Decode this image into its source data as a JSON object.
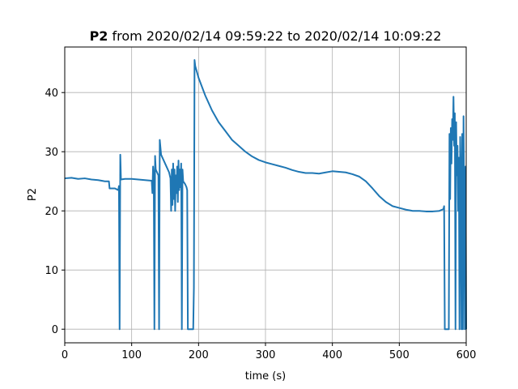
{
  "chart_data": {
    "type": "line",
    "title_bold": "P2",
    "title_rest": " from 2020/02/14 09:59:22 to 2020/02/14 10:09:22",
    "xlabel": "time (s)",
    "ylabel": "P2",
    "xlim": [
      0,
      600
    ],
    "ylim": [
      -2.3,
      47.7
    ],
    "xticks": [
      0,
      100,
      200,
      300,
      400,
      500,
      600
    ],
    "yticks": [
      0,
      10,
      20,
      30,
      40
    ],
    "grid": true,
    "series": [
      {
        "color": "#1f77b4",
        "points": [
          [
            0,
            25.5
          ],
          [
            10,
            25.6
          ],
          [
            20,
            25.4
          ],
          [
            30,
            25.5
          ],
          [
            40,
            25.3
          ],
          [
            50,
            25.2
          ],
          [
            60,
            25.0
          ],
          [
            66,
            25.0
          ],
          [
            67,
            23.8
          ],
          [
            75,
            23.8
          ],
          [
            80,
            23.5
          ],
          [
            81,
            24.2
          ],
          [
            82,
            0
          ],
          [
            83,
            29.5
          ],
          [
            84,
            25.3
          ],
          [
            90,
            25.4
          ],
          [
            100,
            25.4
          ],
          [
            110,
            25.3
          ],
          [
            120,
            25.2
          ],
          [
            130,
            25.1
          ],
          [
            131,
            23.0
          ],
          [
            132,
            27.5
          ],
          [
            133,
            26.0
          ],
          [
            134,
            0
          ],
          [
            135,
            29.3
          ],
          [
            136,
            27.0
          ],
          [
            138,
            26.5
          ],
          [
            140,
            26.0
          ],
          [
            141,
            0
          ],
          [
            142,
            32.0
          ],
          [
            144,
            29.5
          ],
          [
            148,
            28.5
          ],
          [
            152,
            27.5
          ],
          [
            156,
            26.5
          ],
          [
            158,
            25.5
          ],
          [
            159,
            20.0
          ],
          [
            160,
            27.0
          ],
          [
            161,
            21.0
          ],
          [
            162,
            28.0
          ],
          [
            163,
            22.0
          ],
          [
            164,
            27.0
          ],
          [
            165,
            20.0
          ],
          [
            166,
            26.0
          ],
          [
            167,
            23.0
          ],
          [
            168,
            27.5
          ],
          [
            169,
            21.5
          ],
          [
            170,
            28.5
          ],
          [
            171,
            23.5
          ],
          [
            172,
            27.0
          ],
          [
            173,
            24.0
          ],
          [
            174,
            28.0
          ],
          [
            175,
            0
          ],
          [
            176,
            27.0
          ],
          [
            177,
            25.0
          ],
          [
            180,
            24.5
          ],
          [
            182,
            24.0
          ],
          [
            183,
            23.5
          ],
          [
            184,
            0
          ],
          [
            190,
            0
          ],
          [
            192,
            0
          ],
          [
            193,
            7.0
          ],
          [
            194,
            45.5
          ],
          [
            195,
            44.5
          ],
          [
            200,
            42.5
          ],
          [
            210,
            39.5
          ],
          [
            220,
            37.0
          ],
          [
            230,
            35.0
          ],
          [
            240,
            33.5
          ],
          [
            250,
            32.0
          ],
          [
            260,
            31.0
          ],
          [
            270,
            30.0
          ],
          [
            280,
            29.2
          ],
          [
            290,
            28.6
          ],
          [
            300,
            28.2
          ],
          [
            310,
            27.9
          ],
          [
            320,
            27.6
          ],
          [
            330,
            27.3
          ],
          [
            340,
            26.9
          ],
          [
            350,
            26.6
          ],
          [
            360,
            26.4
          ],
          [
            370,
            26.4
          ],
          [
            380,
            26.3
          ],
          [
            390,
            26.5
          ],
          [
            400,
            26.7
          ],
          [
            410,
            26.6
          ],
          [
            420,
            26.5
          ],
          [
            430,
            26.2
          ],
          [
            440,
            25.8
          ],
          [
            450,
            25.0
          ],
          [
            460,
            23.8
          ],
          [
            470,
            22.5
          ],
          [
            480,
            21.5
          ],
          [
            490,
            20.8
          ],
          [
            500,
            20.5
          ],
          [
            510,
            20.2
          ],
          [
            520,
            20.0
          ],
          [
            530,
            20.0
          ],
          [
            540,
            19.9
          ],
          [
            550,
            19.9
          ],
          [
            560,
            20.0
          ],
          [
            566,
            20.3
          ],
          [
            567,
            20.8
          ],
          [
            568,
            0
          ],
          [
            574,
            0
          ],
          [
            575,
            33.0
          ],
          [
            576,
            22.0
          ],
          [
            577,
            34.0
          ],
          [
            578,
            28.0
          ],
          [
            579,
            35.5
          ],
          [
            580,
            32.0
          ],
          [
            581,
            39.3
          ],
          [
            582,
            31.0
          ],
          [
            583,
            36.5
          ],
          [
            584,
            0
          ],
          [
            585,
            35.0
          ],
          [
            586,
            26.0
          ],
          [
            587,
            31.0
          ],
          [
            588,
            20.0
          ],
          [
            589,
            29.0
          ],
          [
            590,
            0
          ],
          [
            591,
            32.5
          ],
          [
            592,
            25.0
          ],
          [
            593,
            0
          ],
          [
            594,
            33.0
          ],
          [
            595,
            0
          ],
          [
            596,
            36.0
          ],
          [
            597,
            20.0
          ],
          [
            598,
            0
          ],
          [
            599,
            27.5
          ],
          [
            600,
            0
          ]
        ]
      }
    ]
  }
}
